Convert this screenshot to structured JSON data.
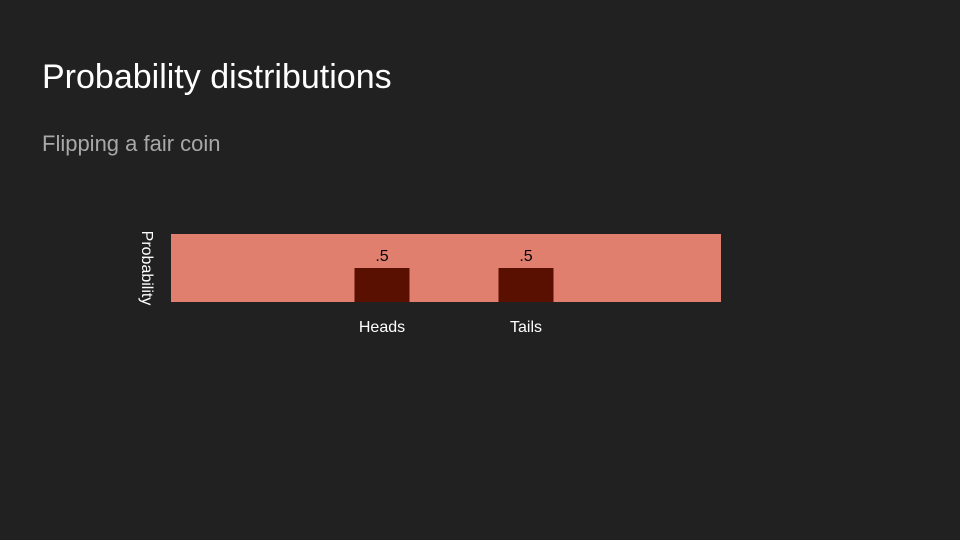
{
  "chart_data": {
    "type": "bar",
    "title": "Probability distributions",
    "subtitle": "Flipping a fair coin",
    "y_label": "Probability",
    "categories": [
      "Heads",
      "Tails"
    ],
    "values": [
      0.5,
      0.5
    ],
    "value_labels": [
      ".5",
      ".5"
    ],
    "color": "#5a1000",
    "plot_background": "#e07f6e",
    "ylim": [
      0,
      1
    ]
  }
}
